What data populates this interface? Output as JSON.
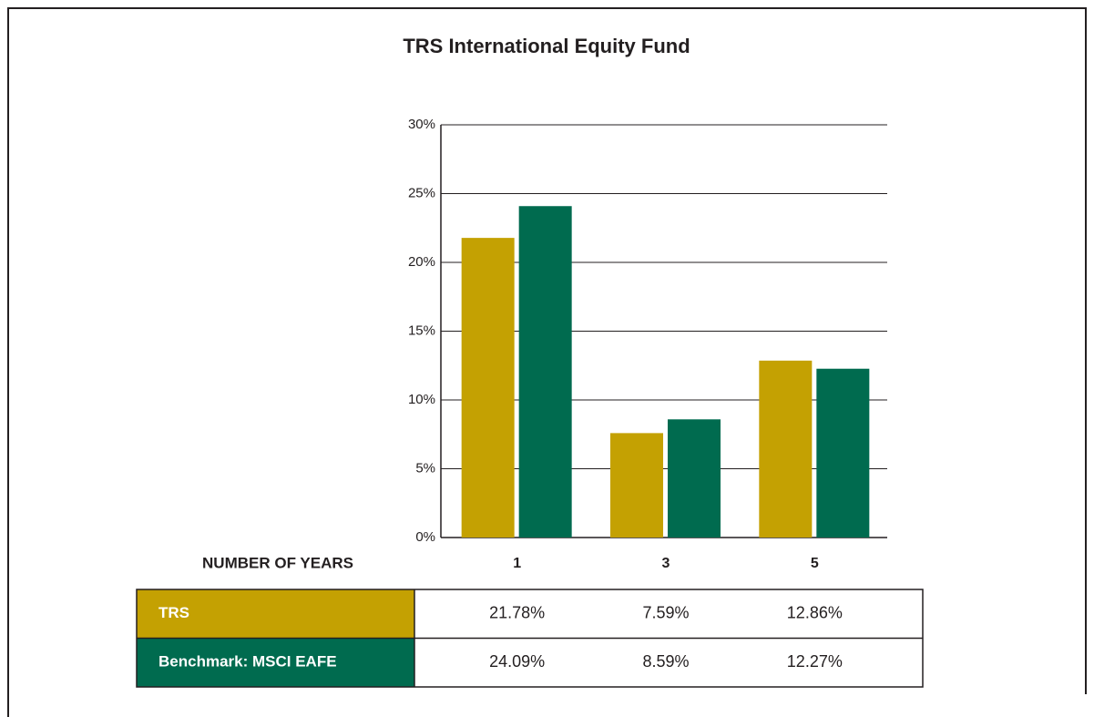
{
  "chart_data": {
    "type": "bar",
    "title": "TRS International Equity Fund",
    "xlabel": "NUMBER OF YEARS",
    "categories": [
      "1",
      "3",
      "5"
    ],
    "series": [
      {
        "name": "TRS",
        "color": "#c4a102",
        "values": [
          21.78,
          7.59,
          12.86
        ],
        "value_labels": [
          "21.78%",
          "7.59%",
          "12.86%"
        ]
      },
      {
        "name": "Benchmark: MSCI EAFE",
        "color": "#006b4f",
        "values": [
          24.09,
          8.59,
          12.27
        ],
        "value_labels": [
          "24.09%",
          "8.59%",
          "12.27%"
        ]
      }
    ],
    "ylim": [
      0,
      30
    ],
    "yticks": [
      {
        "value": 0,
        "label": "0%"
      },
      {
        "value": 5,
        "label": "5%"
      },
      {
        "value": 10,
        "label": "10%"
      },
      {
        "value": 15,
        "label": "15%"
      },
      {
        "value": 20,
        "label": "20%"
      },
      {
        "value": 25,
        "label": "25%"
      },
      {
        "value": 30,
        "label": "30%"
      }
    ],
    "grid": true
  }
}
